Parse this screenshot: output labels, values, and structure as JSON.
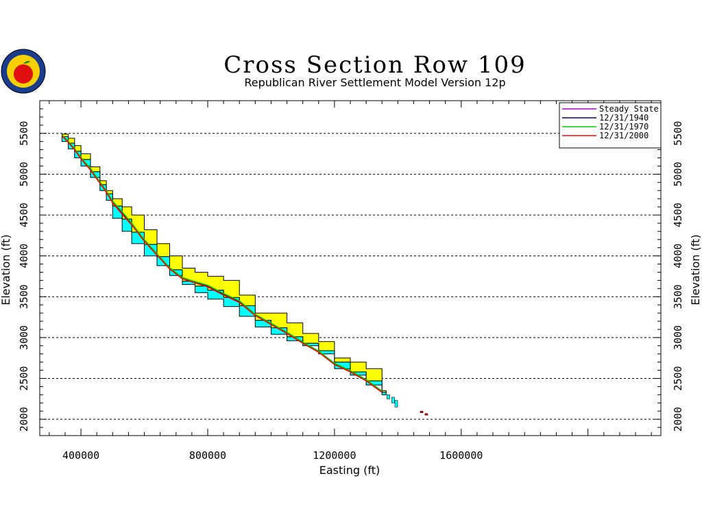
{
  "chart_data": {
    "type": "area",
    "title": "Cross Section Row 109",
    "subtitle": "Republican River Settlement Model Version 12p",
    "xlabel": "Easting (ft)",
    "ylabel": "Elevation (ft)",
    "xlim": [
      270000,
      2230000
    ],
    "ylim": [
      1800,
      5900
    ],
    "x_ticks": [
      400000,
      800000,
      1200000,
      1600000
    ],
    "x_tick_labels": [
      "400000",
      "800000",
      "1200000",
      "1600000"
    ],
    "y_ticks": [
      2000,
      2500,
      3000,
      3500,
      4000,
      4500,
      5000,
      5500
    ],
    "y_tick_labels": [
      "2000",
      "2500",
      "3000",
      "3500",
      "4000",
      "4500",
      "5000",
      "5500"
    ],
    "grid": "horizontal dashed at each y tick",
    "legend_position": "top-right",
    "layers": {
      "x": [
        340000,
        360000,
        380000,
        400000,
        430000,
        460000,
        480000,
        500000,
        530000,
        560000,
        600000,
        640000,
        680000,
        720000,
        760000,
        800000,
        850000,
        900000,
        950000,
        1000000,
        1050000,
        1100000,
        1150000,
        1200000,
        1250000,
        1300000,
        1350000
      ],
      "top_of_yellow": [
        5490,
        5440,
        5350,
        5250,
        5090,
        4920,
        4800,
        4700,
        4600,
        4500,
        4320,
        4150,
        4000,
        3850,
        3800,
        3750,
        3700,
        3520,
        3300,
        3300,
        3180,
        3050,
        2950,
        2750,
        2700,
        2620,
        2350
      ],
      "top_of_cyan": [
        5460,
        5380,
        5280,
        5180,
        5030,
        4870,
        4760,
        4610,
        4450,
        4290,
        4140,
        3990,
        3830,
        3690,
        3630,
        3580,
        3490,
        3390,
        3210,
        3120,
        3010,
        2930,
        2840,
        2700,
        2580,
        2470,
        2330
      ],
      "bottom": [
        5400,
        5310,
        5200,
        5100,
        4960,
        4800,
        4680,
        4460,
        4300,
        4150,
        4000,
        3880,
        3760,
        3650,
        3550,
        3470,
        3380,
        3260,
        3130,
        3040,
        2960,
        2900,
        2800,
        2620,
        2540,
        2420,
        2300
      ]
    },
    "series": [
      {
        "name": "Steady State",
        "color": "#aa00cc",
        "y": [
          5480,
          5400,
          5310,
          5200,
          5060,
          4900,
          4790,
          4660,
          4520,
          4390,
          4190,
          4020,
          3850,
          3730,
          3680,
          3630,
          3530,
          3440,
          3280,
          3170,
          3060,
          2940,
          2830,
          2680,
          2590,
          2480,
          2340
        ]
      },
      {
        "name": "12/31/1940",
        "color": "#000080",
        "y": [
          5475,
          5395,
          5305,
          5195,
          5055,
          4895,
          4785,
          4655,
          4515,
          4385,
          4185,
          4015,
          3845,
          3725,
          3675,
          3625,
          3525,
          3435,
          3275,
          3165,
          3055,
          2935,
          2825,
          2675,
          2585,
          2475,
          2335
        ]
      },
      {
        "name": "12/31/1970",
        "color": "#00cc00",
        "y": [
          5482,
          5402,
          5312,
          5205,
          5070,
          4905,
          4795,
          4670,
          4540,
          4400,
          4200,
          4025,
          3855,
          3735,
          3685,
          3640,
          3540,
          3450,
          3285,
          3175,
          3065,
          2945,
          2835,
          2685,
          2595,
          2485,
          2345
        ]
      },
      {
        "name": "12/31/2000",
        "color": "#ff0000",
        "y": [
          5470,
          5390,
          5300,
          5190,
          5050,
          4890,
          4780,
          4650,
          4510,
          4380,
          4180,
          4010,
          3840,
          3720,
          3670,
          3620,
          3520,
          3430,
          3270,
          3160,
          3050,
          2930,
          2820,
          2670,
          2580,
          2470,
          2330
        ]
      }
    ],
    "isolated_cells": [
      {
        "x": 1370000,
        "top": 2300,
        "bottom": 2250
      },
      {
        "x": 1385000,
        "top": 2270,
        "bottom": 2200
      },
      {
        "x": 1395000,
        "top": 2230,
        "bottom": 2150
      },
      {
        "x": 1475000,
        "top": 2100,
        "bottom": 2080
      },
      {
        "x": 1490000,
        "top": 2070,
        "bottom": 2050
      }
    ],
    "colors": {
      "upper_fill": "#ffff00",
      "lower_fill": "#00ffff",
      "outline": "#000000",
      "grid": "#000000"
    }
  }
}
